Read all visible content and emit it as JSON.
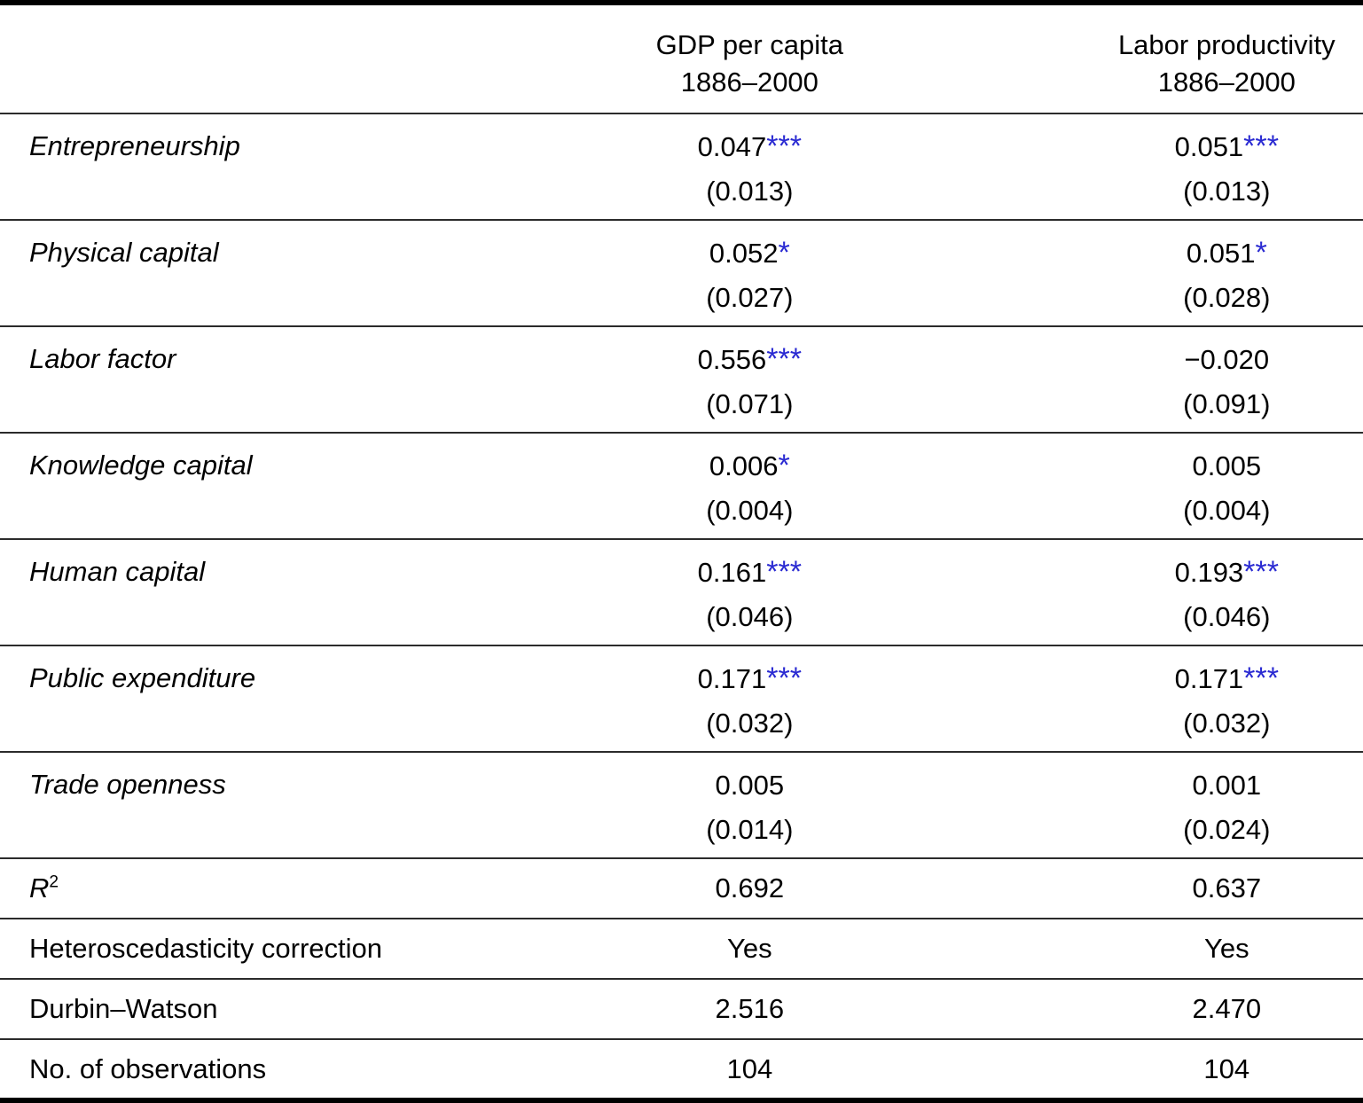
{
  "colors": {
    "star_blue": "#2a2ad2",
    "text": "#000000",
    "rule_thin": "#2b2b2b",
    "rule_thick": "#000000"
  },
  "header": {
    "col1_title": "GDP per capita",
    "col1_subtitle": "1886–2000",
    "col2_title": "Labor productivity",
    "col2_subtitle": "1886–2000"
  },
  "rows": [
    {
      "label": "Entrepreneurship",
      "c1": "0.047",
      "c1_stars": "***",
      "c1_se": "(0.013)",
      "c2": "0.051",
      "c2_stars": "***",
      "c2_se": "(0.013)"
    },
    {
      "label": "Physical capital",
      "c1": "0.052",
      "c1_stars": "*",
      "c1_se": "(0.027)",
      "c2": "0.051",
      "c2_stars": "*",
      "c2_se": "(0.028)"
    },
    {
      "label": "Labor factor",
      "c1": "0.556",
      "c1_stars": "***",
      "c1_se": "(0.071)",
      "c2": "−0.020",
      "c2_stars": "",
      "c2_se": "(0.091)"
    },
    {
      "label": "Knowledge capital",
      "c1": "0.006",
      "c1_stars": "*",
      "c1_se": "(0.004)",
      "c2": "0.005",
      "c2_stars": "",
      "c2_se": "(0.004)"
    },
    {
      "label": "Human capital",
      "c1": "0.161",
      "c1_stars": "***",
      "c1_se": "(0.046)",
      "c2": "0.193",
      "c2_stars": "***",
      "c2_se": "(0.046)"
    },
    {
      "label": "Public expenditure",
      "c1": "0.171",
      "c1_stars": "***",
      "c1_se": "(0.032)",
      "c2": "0.171",
      "c2_stars": "***",
      "c2_se": "(0.032)"
    },
    {
      "label": "Trade openness",
      "c1": "0.005",
      "c1_stars": "",
      "c1_se": "(0.014)",
      "c2": "0.001",
      "c2_stars": "",
      "c2_se": "(0.024)"
    }
  ],
  "stats": [
    {
      "label": "R",
      "label_sup": "2",
      "c1": "0.692",
      "c2": "0.637"
    },
    {
      "label": "Heteroscedasticity correction",
      "label_sup": "",
      "c1": "Yes",
      "c2": "Yes"
    },
    {
      "label": "Durbin–Watson",
      "label_sup": "",
      "c1": "2.516",
      "c2": "2.470"
    },
    {
      "label": "No. of observations",
      "label_sup": "",
      "c1": "104",
      "c2": "104"
    }
  ]
}
